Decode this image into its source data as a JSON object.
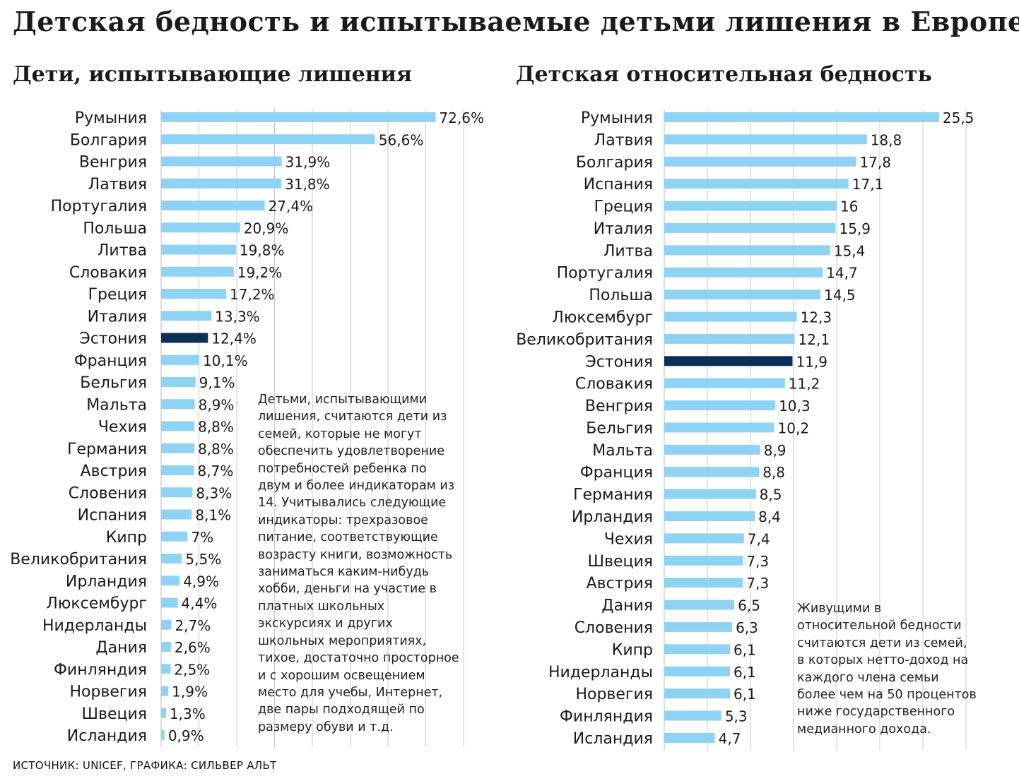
{
  "title": "Детская бедность и испытываемые детьми лишения в Европе",
  "colors": {
    "bar": "#8fd3f4",
    "highlight": "#0d2e57",
    "grid": "#c8c8c8"
  },
  "chart_data": [
    {
      "type": "bar",
      "orientation": "horizontal",
      "title": "Дети, испытывающие лишения",
      "categories": [
        "Румыния",
        "Болгария",
        "Венгрия",
        "Латвия",
        "Португалия",
        "Польша",
        "Литва",
        "Словакия",
        "Греция",
        "Италия",
        "Эстония",
        "Франция",
        "Бельгия",
        "Мальта",
        "Чехия",
        "Германия",
        "Австрия",
        "Словения",
        "Испания",
        "Кипр",
        "Великобритания",
        "Ирландия",
        "Люксембург",
        "Нидерланды",
        "Дания",
        "Финляндия",
        "Норвегия",
        "Швеция",
        "Исландия"
      ],
      "values": [
        72.6,
        56.6,
        31.9,
        31.8,
        27.4,
        20.9,
        19.8,
        19.2,
        17.2,
        13.3,
        12.4,
        10.1,
        9.1,
        8.9,
        8.8,
        8.8,
        8.7,
        8.3,
        8.1,
        7,
        5.5,
        4.9,
        4.4,
        2.7,
        2.6,
        2.5,
        1.9,
        1.3,
        0.9
      ],
      "value_labels": [
        "72,6%",
        "56,6%",
        "31,9%",
        "31,8%",
        "27,4%",
        "20,9%",
        "19,8%",
        "19,2%",
        "17,2%",
        "13,3%",
        "12,4%",
        "10,1%",
        "9,1%",
        "8,9%",
        "8,8%",
        "8,8%",
        "8,7%",
        "8,3%",
        "8,1%",
        "7%",
        "5,5%",
        "4,9%",
        "4,4%",
        "2,7%",
        "2,6%",
        "2,5%",
        "1,9%",
        "1,3%",
        "0,9%"
      ],
      "highlight": "Эстония",
      "xlim": [
        0,
        80
      ],
      "grid": true,
      "note": "Детьми, испытывающими лишения, считаются дети из семей, которые не могут обеспечить удовлетворение потребностей ребенка по двум и более индикаторам из 14. Учитывались следующие индикаторы: трехразовое питание, соответствующие возрасту книги, возможность заниматься каким-нибудь хобби, деньги на участие в платных школьных экскурсиях и других школьных мероприятиях, тихое, достаточно просторное и с хорошим освещением место для учебы, Интернет, две пары подходящей по размеру обуви и т.д."
    },
    {
      "type": "bar",
      "orientation": "horizontal",
      "title": "Детская относительная бедность",
      "categories": [
        "Румыния",
        "Латвия",
        "Болгария",
        "Испания",
        "Греция",
        "Италия",
        "Литва",
        "Португалия",
        "Польша",
        "Люксембург",
        "Великобритания",
        "Эстония",
        "Словакия",
        "Венгрия",
        "Бельгия",
        "Мальта",
        "Франция",
        "Германия",
        "Ирландия",
        "Чехия",
        "Швеция",
        "Австрия",
        "Дания",
        "Словения",
        "Кипр",
        "Нидерланды",
        "Норвегия",
        "Финляндия",
        "Исландия"
      ],
      "values": [
        25.5,
        18.8,
        17.8,
        17.1,
        16,
        15.9,
        15.4,
        14.7,
        14.5,
        12.3,
        12.1,
        11.9,
        11.2,
        10.3,
        10.2,
        8.9,
        8.8,
        8.5,
        8.4,
        7.4,
        7.3,
        7.3,
        6.5,
        6.3,
        6.1,
        6.1,
        6.1,
        5.3,
        4.7
      ],
      "value_labels": [
        "25,5",
        "18,8",
        "17,8",
        "17,1",
        "16",
        "15,9",
        "15,4",
        "14,7",
        "14,5",
        "12,3",
        "12,1",
        "11,9",
        "11,2",
        "10,3",
        "10,2",
        "8,9",
        "8,8",
        "8,5",
        "8,4",
        "7,4",
        "7,3",
        "7,3",
        "6,5",
        "6,3",
        "6,1",
        "6,1",
        "6,1",
        "5,3",
        "4,7"
      ],
      "highlight": "Эстония",
      "xlim": [
        0,
        28
      ],
      "grid": true,
      "note": "Живущими в относительной бедности считаются дети из семей, в которых нетто-доход на каждого члена семьи более чем на 50 процентов ниже государственного медианного дохода."
    }
  ],
  "source": "ИСТОЧНИК: UNICEF, ГРАФИКА: СИЛЬВЕР АЛЬТ"
}
